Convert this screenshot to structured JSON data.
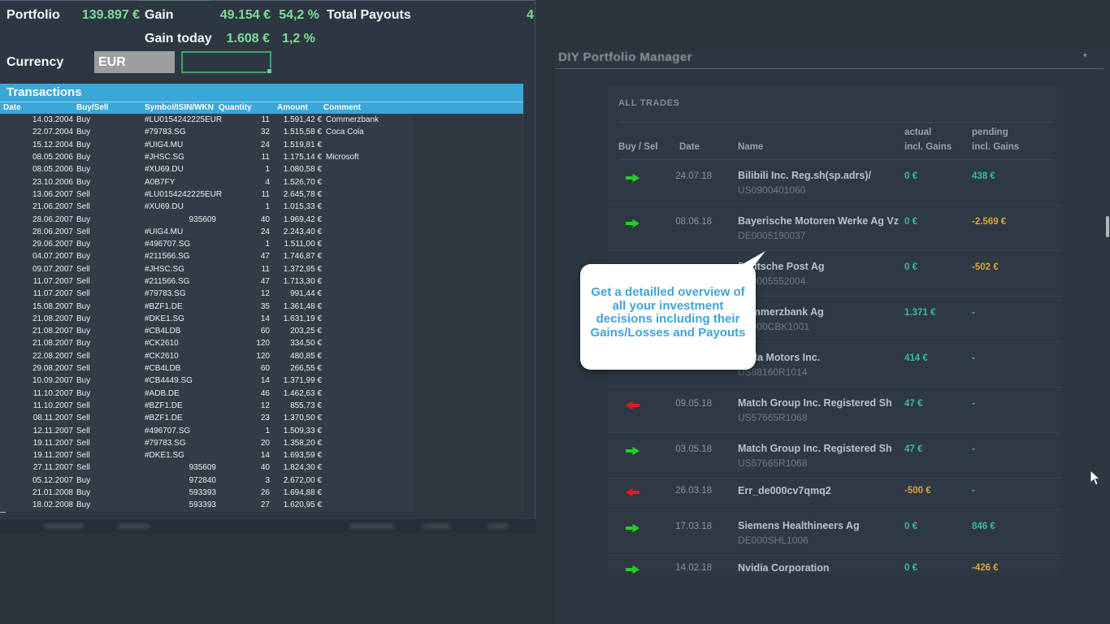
{
  "colors": {
    "canvas_bg": "#2a323c",
    "sheet_bg": "#333c46",
    "band_blue": "#3aa7d9",
    "positive_green": "#7edc98",
    "value_teal": "#32bca0",
    "value_orange": "#e0a23c",
    "buy_arrow_green": "#1ed11e",
    "sell_arrow_red": "#e31b1b",
    "tooltip_text_blue": "#3fa3da",
    "eur_cell_gray": "#9d9d9d",
    "selection_border_green": "#45a06b"
  },
  "left": {
    "summary": {
      "portfolio_label": "Portfolio",
      "portfolio_value": "139.897 €",
      "gain_label": "Gain",
      "gain_value": "49.154 €",
      "gain_pct": "54,2 %",
      "total_payouts_label": "Total Payouts",
      "total_payouts_value": "4",
      "gain_today_label": "Gain today",
      "gain_today_value": "1.608 €",
      "gain_today_pct": "1,2 %",
      "currency_label": "Currency",
      "currency_value": "EUR"
    },
    "transactions": {
      "title": "Transactions",
      "columns": {
        "date": "Date",
        "side": "Buy/Sell",
        "symbol": "Symbol/ISIN/WKN",
        "qty": "Quantity",
        "amount": "Amount",
        "comment": "Comment"
      },
      "rows": [
        {
          "date": "14.03.2004",
          "side": "Buy",
          "symbol": "#LU0154242225EUR",
          "wkn": "",
          "qty": "11",
          "amount": "1.591,42 €",
          "comment": "Commerzbank"
        },
        {
          "date": "22.07.2004",
          "side": "Buy",
          "symbol": "#79783.SG",
          "wkn": "",
          "qty": "32",
          "amount": "1.515,58 €",
          "comment": "Coca Cola"
        },
        {
          "date": "15.12.2004",
          "side": "Buy",
          "symbol": "#UIG4.MU",
          "wkn": "",
          "qty": "24",
          "amount": "1.519,81 €",
          "comment": ""
        },
        {
          "date": "08.05.2006",
          "side": "Buy",
          "symbol": "#JHSC.SG",
          "wkn": "",
          "qty": "11",
          "amount": "1.175,14 €",
          "comment": "Microsoft"
        },
        {
          "date": "08.05.2006",
          "side": "Buy",
          "symbol": "#XU69.DU",
          "wkn": "",
          "qty": "1",
          "amount": "1.080,58 €",
          "comment": ""
        },
        {
          "date": "23.10.2006",
          "side": "Buy",
          "symbol": "A0B7FY",
          "wkn": "",
          "qty": "4",
          "amount": "1.526,70 €",
          "comment": ""
        },
        {
          "date": "13.06.2007",
          "side": "Sell",
          "symbol": "#LU0154242225EUR",
          "wkn": "",
          "qty": "11",
          "amount": "2.645,78 €",
          "comment": ""
        },
        {
          "date": "21.06.2007",
          "side": "Sell",
          "symbol": "#XU69.DU",
          "wkn": "",
          "qty": "1",
          "amount": "1.015,33 €",
          "comment": ""
        },
        {
          "date": "28.06.2007",
          "side": "Buy",
          "symbol": "",
          "wkn": "935609",
          "qty": "40",
          "amount": "1.969,42 €",
          "comment": ""
        },
        {
          "date": "28.06.2007",
          "side": "Sell",
          "symbol": "#UIG4.MU",
          "wkn": "",
          "qty": "24",
          "amount": "2.243,40 €",
          "comment": ""
        },
        {
          "date": "29.06.2007",
          "side": "Buy",
          "symbol": "#496707.SG",
          "wkn": "",
          "qty": "1",
          "amount": "1.511,00 €",
          "comment": ""
        },
        {
          "date": "04.07.2007",
          "side": "Buy",
          "symbol": "#211566.SG",
          "wkn": "",
          "qty": "47",
          "amount": "1.746,87 €",
          "comment": ""
        },
        {
          "date": "09.07.2007",
          "side": "Sell",
          "symbol": "#JHSC.SG",
          "wkn": "",
          "qty": "11",
          "amount": "1.372,95 €",
          "comment": ""
        },
        {
          "date": "11.07.2007",
          "side": "Sell",
          "symbol": "#211566.SG",
          "wkn": "",
          "qty": "47",
          "amount": "1.713,30 €",
          "comment": ""
        },
        {
          "date": "11.07.2007",
          "side": "Sell",
          "symbol": "#79783.SG",
          "wkn": "",
          "qty": "12",
          "amount": "991,44 €",
          "comment": ""
        },
        {
          "date": "15.08.2007",
          "side": "Buy",
          "symbol": "#BZF1.DE",
          "wkn": "",
          "qty": "35",
          "amount": "1.361,48 €",
          "comment": ""
        },
        {
          "date": "21.08.2007",
          "side": "Buy",
          "symbol": "#DKE1.SG",
          "wkn": "",
          "qty": "14",
          "amount": "1.631,19 €",
          "comment": ""
        },
        {
          "date": "21.08.2007",
          "side": "Buy",
          "symbol": "#CB4LDB",
          "wkn": "",
          "qty": "60",
          "amount": "203,25 €",
          "comment": ""
        },
        {
          "date": "21.08.2007",
          "side": "Buy",
          "symbol": "#CK2610",
          "wkn": "",
          "qty": "120",
          "amount": "334,50 €",
          "comment": ""
        },
        {
          "date": "22.08.2007",
          "side": "Sell",
          "symbol": "#CK2610",
          "wkn": "",
          "qty": "120",
          "amount": "480,85 €",
          "comment": ""
        },
        {
          "date": "29.08.2007",
          "side": "Sell",
          "symbol": "#CB4LDB",
          "wkn": "",
          "qty": "60",
          "amount": "266,55 €",
          "comment": ""
        },
        {
          "date": "10.09.2007",
          "side": "Buy",
          "symbol": "#CB4449.SG",
          "wkn": "",
          "qty": "14",
          "amount": "1.371,99 €",
          "comment": ""
        },
        {
          "date": "11.10.2007",
          "side": "Buy",
          "symbol": "#ADB.DE",
          "wkn": "",
          "qty": "46",
          "amount": "1.462,63 €",
          "comment": ""
        },
        {
          "date": "11.10.2007",
          "side": "Sell",
          "symbol": "#BZF1.DE",
          "wkn": "",
          "qty": "12",
          "amount": "855,73 €",
          "comment": ""
        },
        {
          "date": "08.11.2007",
          "side": "Sell",
          "symbol": "#BZF1.DE",
          "wkn": "",
          "qty": "23",
          "amount": "1.370,50 €",
          "comment": ""
        },
        {
          "date": "12.11.2007",
          "side": "Sell",
          "symbol": "#496707.SG",
          "wkn": "",
          "qty": "1",
          "amount": "1.509,33 €",
          "comment": ""
        },
        {
          "date": "19.11.2007",
          "side": "Sell",
          "symbol": "#79783.SG",
          "wkn": "",
          "qty": "20",
          "amount": "1.358,20 €",
          "comment": ""
        },
        {
          "date": "19.11.2007",
          "side": "Sell",
          "symbol": "#DKE1.SG",
          "wkn": "",
          "qty": "14",
          "amount": "1.693,59 €",
          "comment": ""
        },
        {
          "date": "27.11.2007",
          "side": "Sell",
          "symbol": "",
          "wkn": "935609",
          "qty": "40",
          "amount": "1.824,30 €",
          "comment": ""
        },
        {
          "date": "05.12.2007",
          "side": "Buy",
          "symbol": "",
          "wkn": "972840",
          "qty": "3",
          "amount": "2.672,00 €",
          "comment": ""
        },
        {
          "date": "21.01.2008",
          "side": "Buy",
          "symbol": "",
          "wkn": "593393",
          "qty": "26",
          "amount": "1.694,88 €",
          "comment": ""
        },
        {
          "date": "18.02.2008",
          "side": "Buy",
          "symbol": "",
          "wkn": "593393",
          "qty": "27",
          "amount": "1.620,95 €",
          "comment": ""
        }
      ]
    }
  },
  "right": {
    "window_title": "DIY Portfolio Manager",
    "caret": "▾",
    "card_title": "ALL TRADES",
    "columns": {
      "buy_sell": "Buy / Sel",
      "date": "Date",
      "name": "Name",
      "actual_line1": "actual",
      "actual_line2": "incl. Gains",
      "pending_line1": "pending",
      "pending_line2": "incl. Gains"
    },
    "trades": [
      {
        "dir": "buy",
        "date": "24.07.18",
        "name": "Bilibili Inc. Reg.sh(sp.adrs)/",
        "isin": "US0900401060",
        "actual": "0 €",
        "actual_color": "teal",
        "pending": "438 €",
        "pending_color": "teal"
      },
      {
        "dir": "buy",
        "date": "08.06.18",
        "name": "Bayerische Motoren Werke Ag Vz",
        "isin": "DE0005190037",
        "actual": "0 €",
        "actual_color": "teal",
        "pending": "-2.569 €",
        "pending_color": "orange"
      },
      {
        "dir": "",
        "date": "",
        "name": "Deutsche Post Ag",
        "isin": "DE0005552004",
        "actual": "0 €",
        "actual_color": "teal",
        "pending": "-502 €",
        "pending_color": "orange"
      },
      {
        "dir": "",
        "date": "",
        "name": "Commerzbank Ag",
        "isin": "DE000CBK1001",
        "actual": "1.371 €",
        "actual_color": "teal",
        "pending": "-",
        "pending_color": "teal"
      },
      {
        "dir": "",
        "date": "",
        "name": "Tesla Motors Inc.",
        "isin": "US88160R1014",
        "actual": "414 €",
        "actual_color": "teal",
        "pending": "-",
        "pending_color": "teal"
      },
      {
        "dir": "sell",
        "date": "09.05.18",
        "name": "Match Group Inc. Registered Sh",
        "isin": "US57665R1068",
        "actual": "47 €",
        "actual_color": "teal",
        "pending": "-",
        "pending_color": "teal"
      },
      {
        "dir": "buy",
        "date": "03.05.18",
        "name": "Match Group Inc. Registered Sh",
        "isin": "US57665R1068",
        "actual": "47 €",
        "actual_color": "teal",
        "pending": "-",
        "pending_color": "teal"
      },
      {
        "dir": "sell",
        "date": "26.03.18",
        "name": "Err_de000cv7qmq2",
        "isin": "",
        "actual": "-500 €",
        "actual_color": "orange",
        "pending": "-",
        "pending_color": "teal"
      },
      {
        "dir": "buy",
        "date": "17.03.18",
        "name": "Siemens Healthineers Ag",
        "isin": "DE000SHL1006",
        "actual": "0 €",
        "actual_color": "teal",
        "pending": "846 €",
        "pending_color": "teal"
      },
      {
        "dir": "buy",
        "date": "14.02.18",
        "name": "Nvidia Corporation",
        "isin": "",
        "actual": "0 €",
        "actual_color": "teal",
        "pending": "-426 €",
        "pending_color": "orange"
      }
    ]
  },
  "tooltip": {
    "lines": [
      "Get a detailled overview of",
      "all your investment",
      "decisions including their",
      "Gains/Losses and Payouts"
    ]
  }
}
